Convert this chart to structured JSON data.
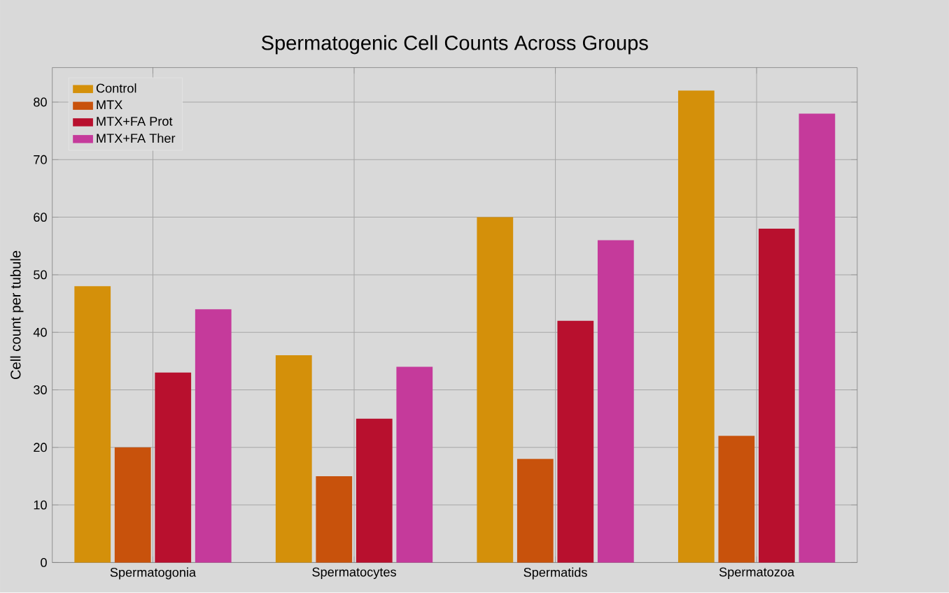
{
  "chart_data": {
    "type": "bar",
    "title": "Spermatogenic Cell Counts Across Groups",
    "ylabel": "Cell count per tubule",
    "categories": [
      "Spermatogonia",
      "Spermatocytes",
      "Spermatids",
      "Spermatozoa"
    ],
    "series": [
      {
        "name": "Control",
        "color": "#d4900a",
        "values": [
          48,
          36,
          60,
          82
        ]
      },
      {
        "name": "MTX",
        "color": "#c8520c",
        "values": [
          20,
          15,
          18,
          22
        ]
      },
      {
        "name": "MTX+FA Prot",
        "color": "#b8102e",
        "values": [
          33,
          25,
          42,
          58
        ]
      },
      {
        "name": "MTX+FA Ther",
        "color": "#c53a9b",
        "values": [
          44,
          34,
          56,
          78
        ]
      }
    ],
    "ylim": [
      0,
      86
    ],
    "yticks": [
      0,
      10,
      20,
      30,
      40,
      50,
      60,
      70,
      80
    ],
    "grid": true,
    "legend": "top left"
  }
}
